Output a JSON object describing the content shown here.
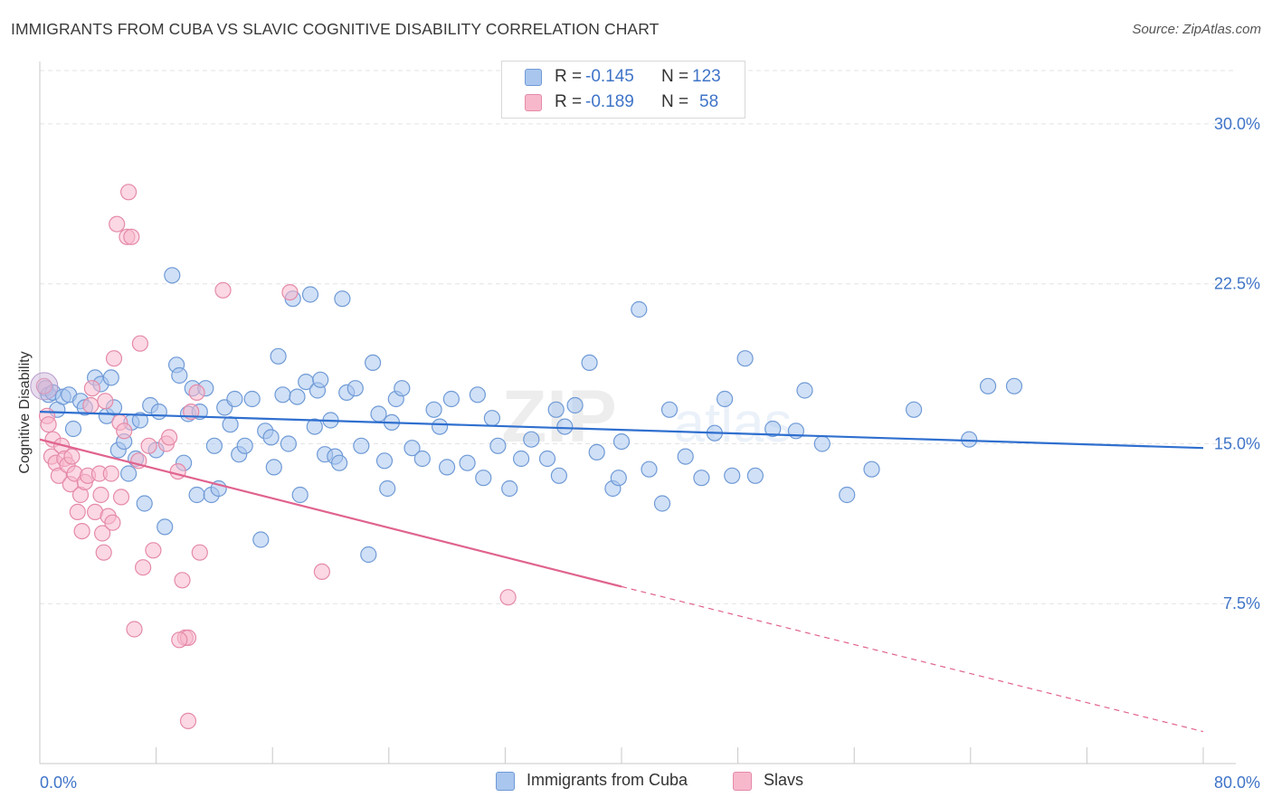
{
  "title": "IMMIGRANTS FROM CUBA VS SLAVIC COGNITIVE DISABILITY CORRELATION CHART",
  "source": "Source: ZipAtlas.com",
  "watermark": {
    "zip": "ZIP",
    "atlas": "atlas"
  },
  "legend": {
    "rows": [
      {
        "r_label": "R =",
        "r_value": "-0.145",
        "n_label": "N =",
        "n_value": "123"
      },
      {
        "r_label": "R =",
        "r_value": "-0.189",
        "n_label": "N =",
        "n_value": "58"
      }
    ]
  },
  "colors": {
    "blue_fill": "#a9c6ee",
    "blue_stroke": "#6f9ad6",
    "blue_line": "#2f6fcf",
    "pink_fill": "#f7b8cc",
    "pink_stroke": "#e58aa8",
    "pink_line": "#e0638f",
    "tick_text": "#3f74c8",
    "grid": "#e3e3e3"
  },
  "chart_data": {
    "type": "scatter",
    "title": "IMMIGRANTS FROM CUBA VS SLAVIC COGNITIVE DISABILITY CORRELATION CHART",
    "xlabel": "",
    "ylabel": "Cognitive Disability",
    "xlim": [
      0,
      80
    ],
    "ylim": [
      0,
      32.5
    ],
    "x_tick_labels": [
      "0.0%",
      "80.0%"
    ],
    "y_ticks": [
      {
        "value": 7.5,
        "label": "7.5%"
      },
      {
        "value": 15.0,
        "label": "15.0%"
      },
      {
        "value": 22.5,
        "label": "22.5%"
      },
      {
        "value": 30.0,
        "label": "30.0%"
      }
    ],
    "grid": true,
    "legend_position": "top-center",
    "series": [
      {
        "name": "Immigrants from Cuba",
        "color": "#a9c6ee",
        "R": -0.145,
        "N": 123,
        "trend": {
          "x0": 0,
          "y0": 16.5,
          "x1": 80,
          "y1": 14.8
        },
        "points": [
          [
            0.4,
            17.6
          ],
          [
            0.6,
            17.3
          ],
          [
            0.9,
            17.4
          ],
          [
            1.2,
            16.6
          ],
          [
            1.6,
            17.2
          ],
          [
            2.0,
            17.3
          ],
          [
            2.3,
            15.7
          ],
          [
            2.8,
            17.0
          ],
          [
            3.1,
            16.7
          ],
          [
            3.8,
            18.1
          ],
          [
            4.2,
            17.8
          ],
          [
            4.6,
            16.3
          ],
          [
            4.9,
            18.1
          ],
          [
            5.1,
            16.7
          ],
          [
            5.4,
            14.7
          ],
          [
            5.8,
            15.1
          ],
          [
            6.1,
            13.6
          ],
          [
            6.3,
            16.0
          ],
          [
            6.6,
            14.3
          ],
          [
            6.9,
            16.1
          ],
          [
            7.2,
            12.2
          ],
          [
            7.6,
            16.8
          ],
          [
            8.0,
            14.7
          ],
          [
            8.2,
            16.5
          ],
          [
            8.6,
            11.1
          ],
          [
            9.1,
            22.9
          ],
          [
            9.4,
            18.7
          ],
          [
            9.6,
            18.2
          ],
          [
            9.9,
            14.1
          ],
          [
            10.2,
            16.4
          ],
          [
            10.5,
            17.6
          ],
          [
            10.8,
            12.6
          ],
          [
            11.0,
            16.5
          ],
          [
            11.4,
            17.6
          ],
          [
            11.8,
            12.6
          ],
          [
            12.0,
            14.9
          ],
          [
            12.3,
            12.9
          ],
          [
            12.7,
            16.7
          ],
          [
            13.1,
            15.9
          ],
          [
            13.4,
            17.1
          ],
          [
            13.7,
            14.5
          ],
          [
            14.1,
            14.9
          ],
          [
            14.6,
            17.1
          ],
          [
            15.2,
            10.5
          ],
          [
            15.5,
            15.6
          ],
          [
            15.9,
            15.3
          ],
          [
            16.1,
            13.9
          ],
          [
            16.4,
            19.1
          ],
          [
            16.7,
            17.3
          ],
          [
            17.1,
            15.0
          ],
          [
            17.4,
            21.8
          ],
          [
            17.7,
            17.2
          ],
          [
            17.9,
            12.6
          ],
          [
            18.3,
            17.9
          ],
          [
            18.6,
            22.0
          ],
          [
            18.9,
            15.8
          ],
          [
            19.1,
            17.5
          ],
          [
            19.3,
            18.0
          ],
          [
            19.6,
            14.5
          ],
          [
            20.0,
            16.1
          ],
          [
            20.3,
            14.4
          ],
          [
            20.6,
            14.1
          ],
          [
            20.8,
            21.8
          ],
          [
            21.1,
            17.4
          ],
          [
            21.7,
            17.6
          ],
          [
            22.1,
            14.9
          ],
          [
            22.6,
            9.8
          ],
          [
            22.9,
            18.8
          ],
          [
            23.3,
            16.4
          ],
          [
            23.7,
            14.2
          ],
          [
            23.9,
            12.9
          ],
          [
            24.2,
            16.0
          ],
          [
            24.5,
            17.1
          ],
          [
            24.9,
            17.6
          ],
          [
            25.6,
            14.8
          ],
          [
            26.3,
            14.3
          ],
          [
            27.1,
            16.6
          ],
          [
            27.5,
            15.8
          ],
          [
            28.0,
            13.9
          ],
          [
            28.3,
            17.1
          ],
          [
            29.4,
            14.1
          ],
          [
            30.1,
            17.3
          ],
          [
            30.5,
            13.4
          ],
          [
            31.1,
            16.2
          ],
          [
            31.5,
            14.9
          ],
          [
            32.3,
            12.9
          ],
          [
            33.1,
            14.3
          ],
          [
            33.8,
            15.2
          ],
          [
            34.9,
            14.3
          ],
          [
            35.5,
            16.6
          ],
          [
            35.7,
            13.5
          ],
          [
            36.1,
            15.8
          ],
          [
            36.8,
            16.8
          ],
          [
            37.8,
            18.8
          ],
          [
            38.3,
            14.6
          ],
          [
            39.4,
            12.9
          ],
          [
            39.8,
            13.4
          ],
          [
            40.0,
            15.1
          ],
          [
            41.2,
            21.3
          ],
          [
            41.9,
            13.8
          ],
          [
            42.8,
            12.2
          ],
          [
            43.3,
            16.6
          ],
          [
            44.4,
            14.4
          ],
          [
            45.5,
            13.4
          ],
          [
            46.4,
            15.5
          ],
          [
            47.1,
            17.1
          ],
          [
            47.6,
            13.5
          ],
          [
            48.5,
            19.0
          ],
          [
            49.2,
            13.5
          ],
          [
            50.4,
            15.7
          ],
          [
            52.0,
            15.6
          ],
          [
            52.6,
            17.5
          ],
          [
            53.8,
            15.0
          ],
          [
            55.5,
            12.6
          ],
          [
            57.2,
            13.8
          ],
          [
            60.1,
            16.6
          ],
          [
            63.9,
            15.2
          ],
          [
            65.2,
            17.7
          ],
          [
            67.0,
            17.7
          ]
        ]
      },
      {
        "name": "Slavs",
        "color": "#f7b8cc",
        "R": -0.189,
        "N": 58,
        "trend": {
          "x0": 0,
          "y0": 15.2,
          "x1": 40,
          "y1": 8.3,
          "dashed_to": {
            "x": 80,
            "y": 1.5
          }
        },
        "points": [
          [
            0.3,
            17.7
          ],
          [
            0.5,
            16.3
          ],
          [
            0.6,
            15.9
          ],
          [
            0.8,
            14.4
          ],
          [
            0.9,
            15.2
          ],
          [
            1.1,
            14.1
          ],
          [
            1.3,
            13.5
          ],
          [
            1.5,
            14.9
          ],
          [
            1.7,
            14.3
          ],
          [
            1.9,
            14.0
          ],
          [
            2.1,
            13.1
          ],
          [
            2.2,
            14.4
          ],
          [
            2.4,
            13.6
          ],
          [
            2.6,
            11.8
          ],
          [
            2.8,
            12.6
          ],
          [
            2.9,
            10.9
          ],
          [
            3.1,
            13.2
          ],
          [
            3.3,
            13.5
          ],
          [
            3.5,
            16.8
          ],
          [
            3.6,
            17.6
          ],
          [
            3.8,
            11.8
          ],
          [
            4.1,
            13.6
          ],
          [
            4.2,
            12.6
          ],
          [
            4.3,
            10.8
          ],
          [
            4.4,
            9.9
          ],
          [
            4.5,
            17.0
          ],
          [
            4.7,
            11.6
          ],
          [
            4.9,
            13.6
          ],
          [
            5.0,
            11.3
          ],
          [
            5.1,
            19.0
          ],
          [
            5.3,
            25.3
          ],
          [
            5.5,
            16.0
          ],
          [
            5.6,
            12.5
          ],
          [
            5.8,
            15.6
          ],
          [
            6.0,
            24.7
          ],
          [
            6.1,
            26.8
          ],
          [
            6.3,
            24.7
          ],
          [
            6.5,
            6.3
          ],
          [
            6.8,
            14.2
          ],
          [
            6.9,
            19.7
          ],
          [
            7.1,
            9.2
          ],
          [
            7.5,
            14.9
          ],
          [
            7.8,
            10.0
          ],
          [
            8.7,
            15.0
          ],
          [
            8.9,
            15.3
          ],
          [
            9.5,
            13.7
          ],
          [
            9.8,
            8.6
          ],
          [
            10.0,
            5.9
          ],
          [
            10.2,
            5.9
          ],
          [
            10.4,
            16.5
          ],
          [
            10.8,
            17.4
          ],
          [
            11.0,
            9.9
          ],
          [
            12.6,
            22.2
          ],
          [
            17.2,
            22.1
          ],
          [
            19.4,
            9.0
          ],
          [
            32.2,
            7.8
          ],
          [
            9.6,
            5.8
          ],
          [
            10.2,
            2.0
          ]
        ]
      }
    ]
  },
  "bottom_legend": {
    "items": [
      {
        "label": "Immigrants from Cuba"
      },
      {
        "label": "Slavs"
      }
    ]
  }
}
